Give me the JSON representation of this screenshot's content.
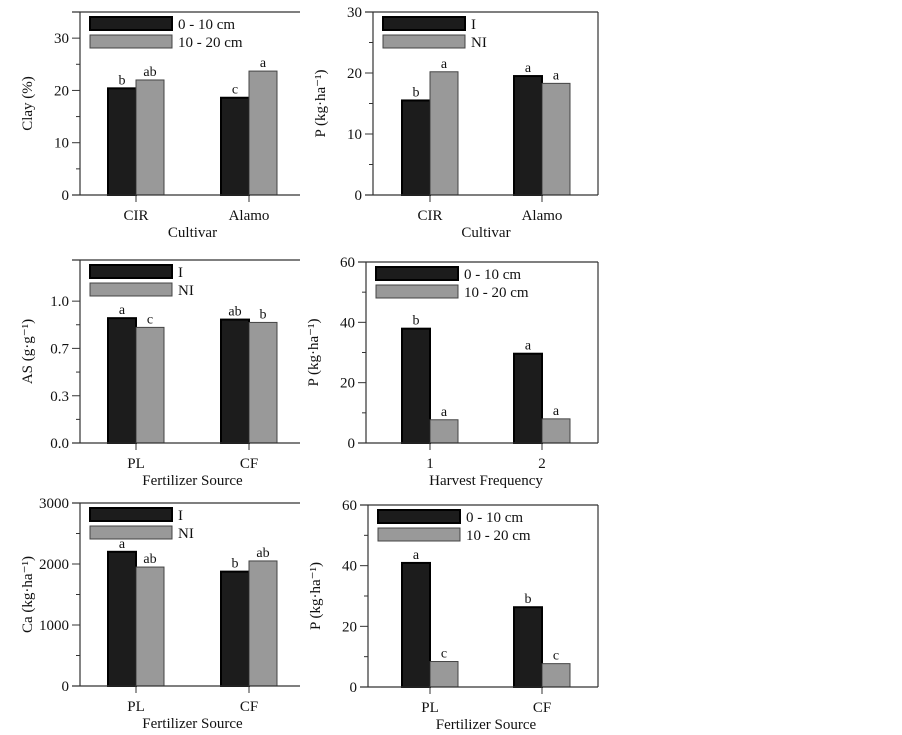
{
  "colors": {
    "dark": "#1c1c1c",
    "gray": "#999999",
    "axis": "#333333"
  },
  "chart_data": [
    {
      "type": "bar",
      "ylabel": "Clay (%)",
      "xlabel": "Cultivar",
      "categories": [
        "CIR",
        "Alamo"
      ],
      "ylim": [
        0,
        35
      ],
      "yticks": [
        0,
        10,
        20,
        30
      ],
      "yticklabels": [
        "0",
        "10",
        "20",
        "30"
      ],
      "series": [
        {
          "name": "0 - 10 cm",
          "values": [
            20.4,
            18.6
          ],
          "labels": [
            "b",
            "c"
          ]
        },
        {
          "name": "10 - 20 cm",
          "values": [
            22.0,
            23.7
          ],
          "labels": [
            "ab",
            "a"
          ]
        }
      ],
      "legend": "top-left"
    },
    {
      "type": "bar",
      "ylabel": "P (kg·ha⁻¹)",
      "xlabel": "Cultivar",
      "categories": [
        "CIR",
        "Alamo"
      ],
      "ylim": [
        0,
        30
      ],
      "yticks": [
        0,
        10,
        20,
        30
      ],
      "yticklabels": [
        "0",
        "10",
        "20",
        "30"
      ],
      "series": [
        {
          "name": "I",
          "values": [
            15.5,
            19.5
          ],
          "labels": [
            "b",
            "a"
          ]
        },
        {
          "name": "NI",
          "values": [
            20.2,
            18.3
          ],
          "labels": [
            "a",
            "a"
          ]
        }
      ],
      "legend": "top-left"
    },
    {
      "type": "bar",
      "ylabel": "AS (g·g⁻¹)",
      "xlabel": "Fertilizer Source",
      "categories": [
        "PL",
        "CF"
      ],
      "ylim": [
        0,
        1.29
      ],
      "yticks": [
        0,
        0.333,
        0.667,
        1.0
      ],
      "yticklabels": [
        "0.0",
        "0.3",
        "0.7",
        "1.0"
      ],
      "series": [
        {
          "name": "I",
          "values": [
            0.88,
            0.87
          ],
          "labels": [
            "a",
            "ab"
          ]
        },
        {
          "name": "NI",
          "values": [
            0.815,
            0.85
          ],
          "labels": [
            "c",
            "b"
          ]
        }
      ],
      "legend": "top-left"
    },
    {
      "type": "bar",
      "ylabel": "P (kg·ha⁻¹)",
      "xlabel": "Harvest Frequency",
      "categories": [
        "1",
        "2"
      ],
      "ylim": [
        0,
        60
      ],
      "yticks": [
        0,
        20,
        40,
        60
      ],
      "yticklabels": [
        "0",
        "20",
        "40",
        "60"
      ],
      "series": [
        {
          "name": "0 - 10 cm",
          "values": [
            37.9,
            29.6
          ],
          "labels": [
            "b",
            "a"
          ]
        },
        {
          "name": "10 - 20 cm",
          "values": [
            7.7,
            8.0
          ],
          "labels": [
            "a",
            "a"
          ]
        }
      ],
      "legend": "top-left"
    },
    {
      "type": "bar",
      "ylabel": "Ca (kg·ha⁻¹)",
      "xlabel": "Fertilizer Source",
      "categories": [
        "PL",
        "CF"
      ],
      "ylim": [
        0,
        3000
      ],
      "yticks": [
        0,
        1000,
        2000,
        3000
      ],
      "yticklabels": [
        "0",
        "1000",
        "2000",
        "3000"
      ],
      "series": [
        {
          "name": "I",
          "values": [
            2200,
            1875
          ],
          "labels": [
            "a",
            "b"
          ]
        },
        {
          "name": "NI",
          "values": [
            1950,
            2050
          ],
          "labels": [
            "ab",
            "ab"
          ]
        }
      ],
      "legend": "top-left"
    },
    {
      "type": "bar",
      "ylabel": "P (kg·ha⁻¹)",
      "xlabel": "Fertilizer Source",
      "categories": [
        "PL",
        "CF"
      ],
      "ylim": [
        0,
        60
      ],
      "yticks": [
        0,
        20,
        40,
        60
      ],
      "yticklabels": [
        "0",
        "20",
        "40",
        "60"
      ],
      "series": [
        {
          "name": "0 - 10 cm",
          "values": [
            40.9,
            26.3
          ],
          "labels": [
            "a",
            "b"
          ]
        },
        {
          "name": "10 - 20 cm",
          "values": [
            8.4,
            7.7
          ],
          "labels": [
            "c",
            "c"
          ]
        }
      ],
      "legend": "top-left"
    }
  ]
}
